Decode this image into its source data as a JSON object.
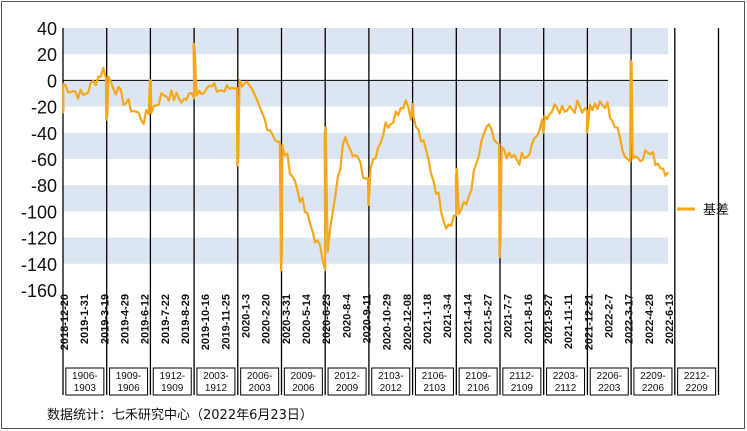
{
  "chart_data": {
    "type": "line",
    "title": "",
    "xlabel": "",
    "ylabel": "",
    "ylim": [
      -160,
      40
    ],
    "yticks": [
      40,
      20,
      0,
      -20,
      -40,
      -60,
      -80,
      -100,
      -120,
      -140,
      -160
    ],
    "grid": "horizontal alternating bands",
    "legend_position": "right",
    "x_tick_labels": [
      "2018-12-20",
      "2019-1-31",
      "2019-3-19",
      "2019-4-29",
      "2019-6-12",
      "2019-7-22",
      "2019-8-29",
      "2019-10-16",
      "2019-11-25",
      "2020-1-3",
      "2020-2-20",
      "2020-3-31",
      "2020-5-14",
      "2020-6-23",
      "2020-8-4",
      "2020-9-11",
      "2020-10-29",
      "2020-12-08",
      "2021-1-18",
      "2021-3-4",
      "2021-4-14",
      "2021-5-27",
      "2021-7-7",
      "2021-8-16",
      "2021-9-27",
      "2021-11-11",
      "2021-12-21",
      "2022-2-7",
      "2022-3-17",
      "2022-4-28",
      "2022-6-13"
    ],
    "spread_labels": [
      "1906-1903",
      "1909-1906",
      "1912-1909",
      "2003-1912",
      "2006-2003",
      "2009-2006",
      "2012-2009",
      "2103-2012",
      "2106-2103",
      "2109-2106",
      "2112-2109",
      "2203-2112",
      "2206-2203",
      "2209-2206",
      "2212-2209"
    ],
    "series": [
      {
        "name": "基差",
        "color": "#f5a81c",
        "x": [
          "2018-12-20",
          "2019-1-31",
          "2019-3-19",
          "2019-4-29",
          "2019-6-12",
          "2019-7-22",
          "2019-8-29",
          "2019-10-16",
          "2019-11-25",
          "2020-1-3",
          "2020-2-20",
          "2020-3-31",
          "2020-5-14",
          "2020-6-23",
          "2020-8-4",
          "2020-9-11",
          "2020-10-29",
          "2020-12-08",
          "2021-1-18",
          "2021-3-4",
          "2021-4-14",
          "2021-5-27",
          "2021-7-7",
          "2021-8-16",
          "2021-9-27",
          "2021-11-11",
          "2021-12-21",
          "2022-2-7",
          "2022-3-17",
          "2022-4-28",
          "2022-6-13"
        ],
        "values": [
          -3,
          -12,
          8,
          -15,
          -30,
          -10,
          -15,
          -5,
          -8,
          0,
          -30,
          -55,
          -100,
          -140,
          -40,
          -75,
          -35,
          -15,
          -55,
          -110,
          -95,
          -35,
          -60,
          -60,
          -25,
          -20,
          -20,
          -20,
          -60,
          -55,
          -70
        ]
      }
    ],
    "contract_roll_values": [
      -25,
      -30,
      0,
      28,
      -65,
      -145,
      -40,
      -95,
      -20,
      -75,
      -135,
      -40,
      -40,
      15,
      -85,
      -20
    ]
  },
  "legend": {
    "label": "基差"
  },
  "source_note": "数据统计：七禾研究中心（2022年6月23日）"
}
